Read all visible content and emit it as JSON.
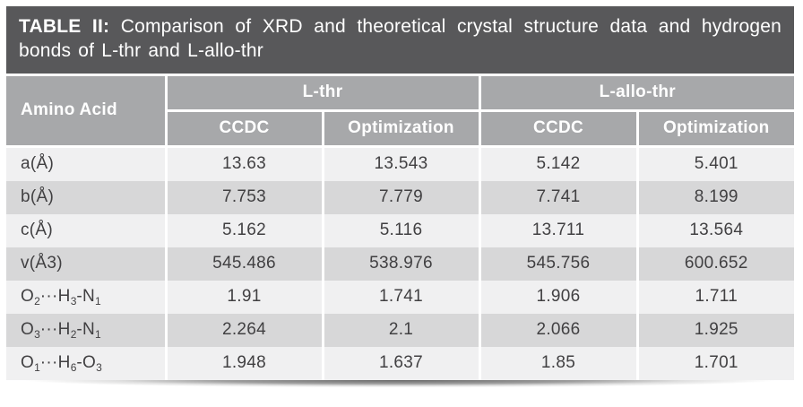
{
  "title": {
    "label": "TABLE II:",
    "text": "Comparison of XRD and theoretical crystal structure data and hydrogen bonds of L-thr and L-allo-thr"
  },
  "header": {
    "row_label_column": "Amino Acid",
    "groups": [
      {
        "label": "L-thr",
        "subcolumns": [
          "CCDC",
          "Optimization"
        ]
      },
      {
        "label": "L-allo-thr",
        "subcolumns": [
          "CCDC",
          "Optimization"
        ]
      }
    ]
  },
  "rows": [
    {
      "label": [
        {
          "t": "a(Å)"
        }
      ],
      "values": [
        "13.63",
        "13.543",
        "5.142",
        "5.401"
      ]
    },
    {
      "label": [
        {
          "t": "b(Å)"
        }
      ],
      "values": [
        "7.753",
        "7.779",
        "7.741",
        "8.199"
      ]
    },
    {
      "label": [
        {
          "t": "c(Å)"
        }
      ],
      "values": [
        "5.162",
        "5.116",
        "13.711",
        "13.564"
      ]
    },
    {
      "label": [
        {
          "t": "v(Å3)"
        }
      ],
      "values": [
        "545.486",
        "538.976",
        "545.756",
        "600.652"
      ]
    },
    {
      "label": [
        {
          "t": "O",
          "s": "2"
        },
        {
          "t": "···H",
          "s": "3"
        },
        {
          "t": "-N",
          "s": "1"
        }
      ],
      "values": [
        "1.91",
        "1.741",
        "1.906",
        "1.711"
      ]
    },
    {
      "label": [
        {
          "t": "O",
          "s": "3"
        },
        {
          "t": "···H",
          "s": "2"
        },
        {
          "t": "-N",
          "s": "1"
        }
      ],
      "values": [
        "2.264",
        "2.1",
        "2.066",
        "1.925"
      ]
    },
    {
      "label": [
        {
          "t": "O",
          "s": "1"
        },
        {
          "t": "···H",
          "s": "6"
        },
        {
          "t": "-O",
          "s": "3"
        }
      ],
      "values": [
        "1.948",
        "1.637",
        "1.85",
        "1.701"
      ]
    }
  ],
  "colors": {
    "title_bg": "#58585a",
    "header_bg": "#a7a8aa",
    "row_light": "#f0f0f1",
    "row_dark": "#d7d7d8",
    "text_dark": "#414042",
    "text_light": "#ffffff"
  }
}
